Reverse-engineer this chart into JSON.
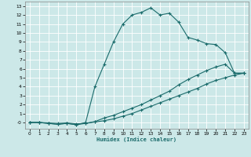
{
  "xlabel": "Humidex (Indice chaleur)",
  "bg_color": "#cce8e8",
  "line_color": "#1a6b6b",
  "xlim": [
    -0.5,
    23.5
  ],
  "ylim": [
    -0.7,
    13.5
  ],
  "xticks": [
    0,
    1,
    2,
    3,
    4,
    5,
    6,
    7,
    8,
    9,
    10,
    11,
    12,
    13,
    14,
    15,
    16,
    17,
    18,
    19,
    20,
    21,
    22,
    23
  ],
  "yticks": [
    0,
    1,
    2,
    3,
    4,
    5,
    6,
    7,
    8,
    9,
    10,
    11,
    12,
    13
  ],
  "curve1_x": [
    0,
    1,
    2,
    3,
    4,
    5,
    6,
    7,
    8,
    9,
    10,
    11,
    12,
    13,
    14,
    15,
    16,
    17,
    18,
    19,
    20,
    21,
    22,
    23
  ],
  "curve1_y": [
    0.0,
    0.0,
    -0.1,
    -0.2,
    -0.1,
    -0.25,
    0.0,
    4.0,
    6.5,
    9.0,
    11.0,
    12.0,
    12.3,
    12.8,
    12.0,
    12.2,
    11.2,
    9.5,
    9.2,
    8.8,
    8.7,
    7.8,
    5.5,
    5.5
  ],
  "curve2_x": [
    0,
    1,
    2,
    3,
    4,
    5,
    6,
    7,
    8,
    9,
    10,
    11,
    12,
    13,
    14,
    15,
    16,
    17,
    18,
    19,
    20,
    21,
    22,
    23
  ],
  "curve2_y": [
    0.0,
    0.0,
    -0.1,
    -0.2,
    -0.1,
    -0.25,
    -0.1,
    0.1,
    0.5,
    0.8,
    1.2,
    1.6,
    2.0,
    2.5,
    3.0,
    3.5,
    4.2,
    4.8,
    5.3,
    5.8,
    6.2,
    6.5,
    5.5,
    5.5
  ],
  "curve3_x": [
    0,
    1,
    2,
    3,
    4,
    5,
    6,
    7,
    8,
    9,
    10,
    11,
    12,
    13,
    14,
    15,
    16,
    17,
    18,
    19,
    20,
    21,
    22,
    23
  ],
  "curve3_y": [
    0.0,
    0.0,
    -0.05,
    -0.1,
    -0.05,
    -0.15,
    -0.1,
    0.05,
    0.2,
    0.4,
    0.7,
    1.0,
    1.4,
    1.8,
    2.2,
    2.6,
    3.0,
    3.4,
    3.8,
    4.3,
    4.7,
    5.0,
    5.3,
    5.5
  ]
}
